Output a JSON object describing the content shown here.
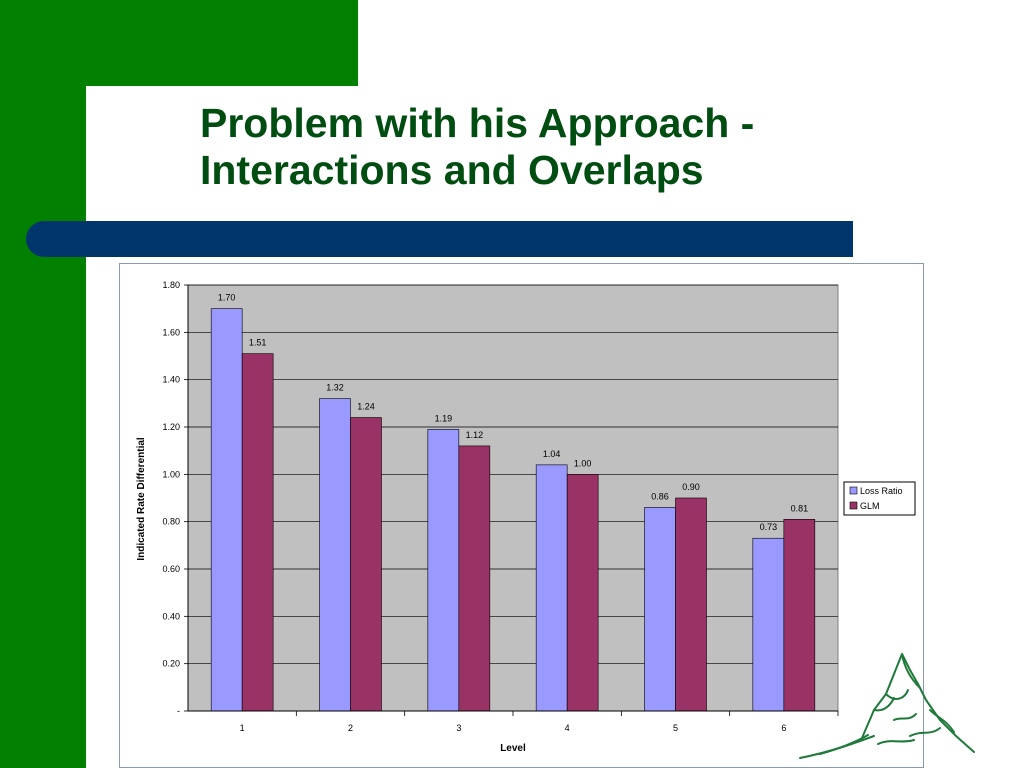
{
  "slide": {
    "title_line1": "Problem with his Approach -",
    "title_line2": "Interactions and Overlaps"
  },
  "colors": {
    "green": "#028002",
    "navy": "#00366b",
    "title": "#004d12",
    "plot_bg": "#c0c0c0",
    "loss_ratio": "#9999ff",
    "glm": "#993366"
  },
  "chart_data": {
    "type": "bar",
    "title": "",
    "xlabel": "Level",
    "ylabel": "Indicated Rate Differential",
    "categories": [
      "1",
      "2",
      "3",
      "4",
      "5",
      "6"
    ],
    "series": [
      {
        "name": "Loss Ratio",
        "values": [
          1.7,
          1.32,
          1.19,
          1.04,
          0.86,
          0.73
        ],
        "labels": [
          "1.70",
          "1.32",
          "1.19",
          "1.04",
          "0.86",
          "0.73"
        ]
      },
      {
        "name": "GLM",
        "values": [
          1.51,
          1.24,
          1.12,
          1.0,
          0.9,
          0.81
        ],
        "labels": [
          "1.51",
          "1.24",
          "1.12",
          "1.00",
          "0.90",
          "0.81"
        ]
      }
    ],
    "ylim": [
      0,
      1.8
    ],
    "yticks": [
      0,
      0.2,
      0.4,
      0.6,
      0.8,
      1.0,
      1.2,
      1.4,
      1.6,
      1.8
    ],
    "ytick_labels": [
      "-",
      "0.20",
      "0.40",
      "0.60",
      "0.80",
      "1.00",
      "1.20",
      "1.40",
      "1.60",
      "1.80"
    ],
    "grid": true,
    "legend_position": "right"
  }
}
